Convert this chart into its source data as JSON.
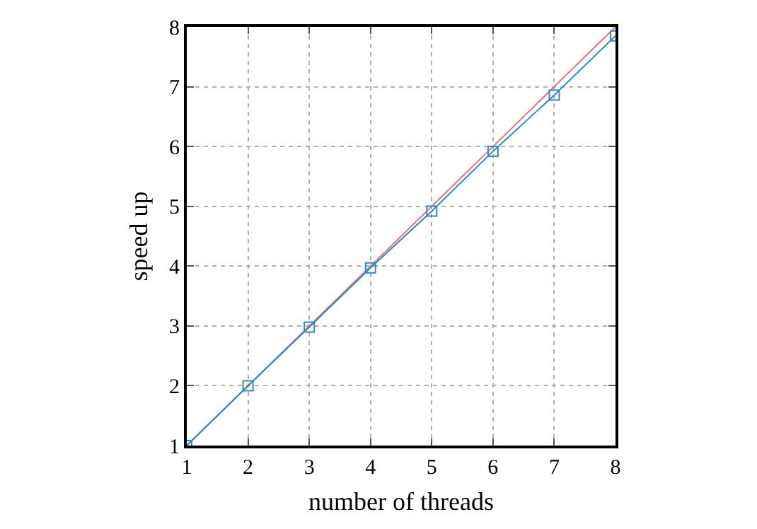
{
  "chart_data": {
    "type": "line",
    "xlabel": "number of threads",
    "ylabel": "speed up",
    "x": [
      1,
      2,
      3,
      4,
      5,
      6,
      7,
      8
    ],
    "series": [
      {
        "color": "#f07070",
        "values": [
          1,
          2,
          3,
          4,
          5,
          6,
          7,
          8
        ],
        "marker": "none"
      },
      {
        "color": "#2b8cc4",
        "values": [
          1,
          2,
          2.98,
          3.97,
          4.92,
          5.92,
          6.86,
          7.85
        ],
        "marker": "square"
      }
    ],
    "xlim": [
      1,
      8
    ],
    "xticks": [
      1,
      2,
      3,
      4,
      5,
      6,
      7,
      8
    ],
    "ylim": [
      1,
      8
    ],
    "yticks": [
      1,
      2,
      3,
      4,
      5,
      6,
      7,
      8
    ],
    "grid": true,
    "line_style": "solid"
  }
}
